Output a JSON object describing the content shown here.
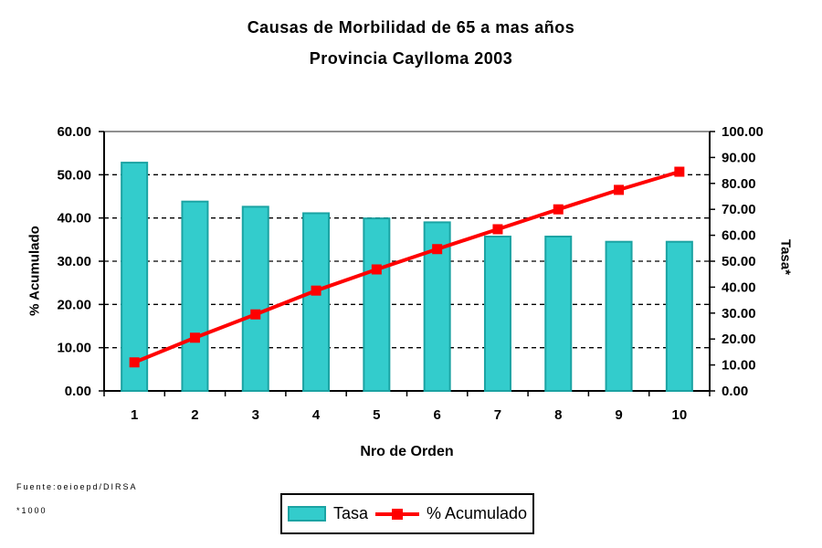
{
  "title": {
    "line1": "Causas de Morbilidad de 65 a mas años",
    "line2": "Provincia Caylloma 2003"
  },
  "legend": {
    "tasa_label": "Tasa",
    "acumulado_label": "% Acumulado"
  },
  "footer": {
    "source": "Fuente:oeioepd/DIRSA",
    "note": "*1000"
  },
  "colors": {
    "bar_fill": "#33CCCC",
    "bar_border": "#1BA3A3",
    "line": "#FF0000",
    "grid": "#000000",
    "axis": "#000000",
    "plot_top_border": "#909090"
  },
  "chart_data": {
    "type": "bar",
    "subtype": "pareto (bar + line, dual axis)",
    "title": "Causas de Morbilidad de 65 a mas años — Provincia Caylloma 2003",
    "xlabel": "Nro de Orden",
    "categories": [
      "1",
      "2",
      "3",
      "4",
      "5",
      "6",
      "7",
      "8",
      "9",
      "10"
    ],
    "series": [
      {
        "name": "Tasa",
        "type": "bar",
        "axis": "right",
        "values": [
          88,
          73,
          71,
          68.5,
          66.5,
          65,
          59.5,
          59.5,
          57.5,
          57.5
        ]
      },
      {
        "name": "% Acumulado",
        "type": "line",
        "axis": "left",
        "marker": "square",
        "values": [
          6.6,
          12.3,
          17.7,
          23.2,
          28.1,
          32.8,
          37.4,
          42.0,
          46.5,
          50.7
        ]
      }
    ],
    "left_axis": {
      "label": "% Acumulado",
      "min": 0,
      "max": 60,
      "step": 10,
      "tick_decimals": 2
    },
    "right_axis": {
      "label": "Tasa*",
      "min": 0,
      "max": 100,
      "step": 10,
      "tick_decimals": 2
    },
    "grid": "horizontal dashed at left-axis steps",
    "legend_position": "bottom"
  }
}
